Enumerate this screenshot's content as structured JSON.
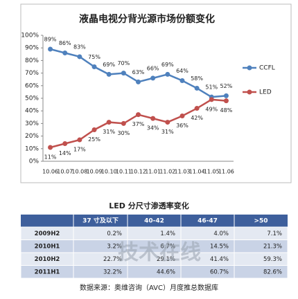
{
  "chart_data": {
    "type": "line",
    "title": "液晶电视分背光源市场份额变化",
    "categories": [
      "10.06",
      "10.07",
      "10.08",
      "10.09",
      "10.10",
      "10.11",
      "10.12",
      "11.01",
      "11.02",
      "11.03",
      "11.04",
      "11.05",
      "11.06"
    ],
    "series": [
      {
        "name": "CCFL",
        "color": "#4f81bd",
        "values": [
          89,
          86,
          83,
          75,
          69,
          70,
          63,
          66,
          69,
          64,
          58,
          51,
          52
        ],
        "value_labels": [
          "89%",
          "86%",
          "83%",
          "75%",
          "69%",
          "70%",
          "63%",
          "66%",
          "69%",
          "64%",
          "58%",
          "51%",
          "52%"
        ]
      },
      {
        "name": "LED",
        "color": "#c0504d",
        "values": [
          11,
          14,
          17,
          25,
          31,
          30,
          37,
          34,
          31,
          36,
          42,
          49,
          48
        ],
        "value_labels": [
          "11%",
          "14%",
          "17%",
          "25%",
          "31%",
          "30%",
          "37%",
          "34%",
          "31%",
          "36%",
          "42%",
          "49%",
          "48%"
        ]
      }
    ],
    "ylim": [
      0,
      100
    ],
    "yticks": [
      {
        "value": 0,
        "label": "0%"
      },
      {
        "value": 10,
        "label": "10%"
      },
      {
        "value": 20,
        "label": "20%"
      },
      {
        "value": 30,
        "label": "30%"
      },
      {
        "value": 40,
        "label": "40%"
      },
      {
        "value": 50,
        "label": "50%"
      },
      {
        "value": 60,
        "label": "60%"
      },
      {
        "value": 70,
        "label": "70%"
      },
      {
        "value": 80,
        "label": "80%"
      },
      {
        "value": 90,
        "label": "90%"
      },
      {
        "value": 100,
        "label": "100%"
      }
    ],
    "grid": false,
    "legend": "right"
  },
  "table": {
    "title": "LED 分尺寸渗透率变化",
    "header": [
      "37 寸及以下",
      "40-42",
      "46-47",
      ">50"
    ],
    "rows": [
      [
        "2009H2",
        "0.2%",
        "1.4%",
        "4.0%",
        "7.1%"
      ],
      [
        "2010H1",
        "3.2%",
        "6.7%",
        "14.5%",
        "21.3%"
      ],
      [
        "2010H2",
        "22.7%",
        "29.1%",
        "41.4%",
        "59.3%"
      ],
      [
        "2011H1",
        "32.2%",
        "44.6%",
        "60.7%",
        "82.6%"
      ]
    ]
  },
  "watermark": "技术在线",
  "source": "数据来源：奥维咨询（AVC）月度推总数据库"
}
